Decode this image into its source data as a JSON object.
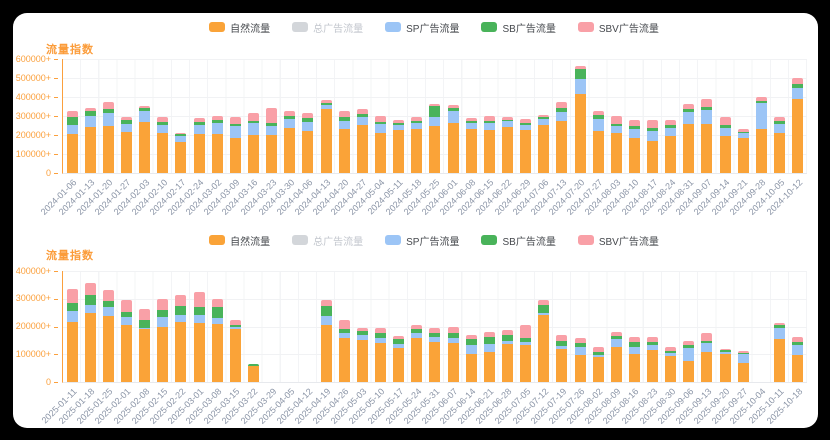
{
  "page": {
    "background": "#000000",
    "card_background": "#ffffff"
  },
  "colors": {
    "natural": "#faa338",
    "total_ad_inactive": "#d3d6da",
    "sp": "#9cc5f6",
    "sb": "#49b35a",
    "sbv": "#f9a0a7",
    "title_text": "#fb9c3a",
    "y_axis_text": "#fba03d",
    "x_axis_text": "#8a94a6",
    "grid_line": "#f1f2f4"
  },
  "chart_data": [
    {
      "type": "bar",
      "stacked": true,
      "title": "流量指数",
      "legend_position": "top-center",
      "grid": true,
      "legend": [
        {
          "label": "自然流量",
          "color": "#faa338",
          "active": true
        },
        {
          "label": "总广告流量",
          "color": "#d3d6da",
          "active": false
        },
        {
          "label": "SP广告流量",
          "color": "#9cc5f6",
          "active": true
        },
        {
          "label": "SB广告流量",
          "color": "#49b35a",
          "active": true
        },
        {
          "label": "SBV广告流量",
          "color": "#f9a0a7",
          "active": true
        }
      ],
      "y_axis": {
        "max": 600000,
        "tick_labels": [
          "600000+",
          "500000+",
          "400000+",
          "300000+",
          "200000+",
          "100000+",
          "0"
        ]
      },
      "categories": [
        "2024-01-06",
        "2024-01-13",
        "2024-01-20",
        "2024-01-27",
        "2024-02-03",
        "2024-02-10",
        "2024-02-17",
        "2024-02-24",
        "2024-03-02",
        "2024-03-09",
        "2024-03-16",
        "2024-03-23",
        "2024-03-30",
        "2024-04-06",
        "2024-04-13",
        "2024-04-20",
        "2024-04-27",
        "2024-05-04",
        "2024-05-11",
        "2024-05-18",
        "2024-05-25",
        "2024-06-01",
        "2024-06-08",
        "2024-06-15",
        "2024-06-22",
        "2024-06-29",
        "2024-07-06",
        "2024-07-13",
        "2024-07-20",
        "2024-07-27",
        "2024-08-03",
        "2024-08-10",
        "2024-08-17",
        "2024-08-24",
        "2024-08-31",
        "2024-09-07",
        "2024-09-14",
        "2024-09-21",
        "2024-09-28",
        "2024-10-05",
        "2024-10-12"
      ],
      "series": [
        {
          "name": "自然流量",
          "key": "natural",
          "color": "#faa338",
          "values": [
            205000,
            240000,
            248000,
            218000,
            270000,
            210000,
            165000,
            204000,
            205000,
            185000,
            200000,
            198000,
            238000,
            223000,
            335000,
            230000,
            253000,
            212000,
            228000,
            230000,
            247000,
            265000,
            230000,
            225000,
            240000,
            225000,
            253000,
            274000,
            415000,
            223000,
            209000,
            183000,
            168000,
            195000,
            258000,
            256000,
            196000,
            182000,
            233000,
            211000,
            392000
          ]
        },
        {
          "name": "SP广告流量",
          "key": "sp",
          "color": "#9cc5f6",
          "values": [
            50000,
            62000,
            68000,
            40000,
            58000,
            42000,
            30000,
            49000,
            58000,
            60000,
            62000,
            47000,
            45000,
            47000,
            22000,
            45000,
            43000,
            45000,
            27000,
            32000,
            50000,
            62000,
            32000,
            37000,
            32000,
            28000,
            30000,
            45000,
            78000,
            61000,
            38000,
            49000,
            53000,
            43000,
            65000,
            75000,
            42000,
            26000,
            133000,
            47000,
            53000
          ]
        },
        {
          "name": "SB广告流量",
          "key": "sb",
          "color": "#49b35a",
          "values": [
            42000,
            26000,
            22000,
            20000,
            12000,
            18000,
            8000,
            17000,
            15000,
            15000,
            10000,
            17000,
            17000,
            18000,
            12000,
            18000,
            15000,
            13000,
            10000,
            12000,
            58000,
            15000,
            10000,
            10000,
            8000,
            9000,
            10000,
            21000,
            57000,
            21000,
            12000,
            14000,
            14000,
            15000,
            14000,
            14000,
            15000,
            10000,
            14000,
            17000,
            22000
          ]
        },
        {
          "name": "SBV广告流量",
          "key": "sbv",
          "color": "#f9a0a7",
          "values": [
            28000,
            13000,
            34000,
            18000,
            15000,
            26000,
            10000,
            21000,
            23000,
            35000,
            43000,
            81000,
            28000,
            29000,
            13000,
            35000,
            24000,
            28000,
            15000,
            22000,
            7000,
            16000,
            18000,
            30000,
            17000,
            21000,
            15000,
            35000,
            13000,
            23000,
            43000,
            31000,
            42000,
            24000,
            24000,
            43000,
            43000,
            13000,
            18000,
            21000,
            31000
          ]
        }
      ]
    },
    {
      "type": "bar",
      "stacked": true,
      "title": "流量指数",
      "legend_position": "top-center",
      "grid": true,
      "legend": [
        {
          "label": "自然流量",
          "color": "#faa338",
          "active": true
        },
        {
          "label": "总广告流量",
          "color": "#d3d6da",
          "active": false
        },
        {
          "label": "SP广告流量",
          "color": "#9cc5f6",
          "active": true
        },
        {
          "label": "SB广告流量",
          "color": "#49b35a",
          "active": true
        },
        {
          "label": "SBV广告流量",
          "color": "#f9a0a7",
          "active": true
        }
      ],
      "y_axis": {
        "max": 400000,
        "tick_labels": [
          "400000+",
          "300000+",
          "200000+",
          "100000+",
          "0"
        ]
      },
      "categories": [
        "2025-01-11",
        "2025-01-18",
        "2025-01-25",
        "2025-02-01",
        "2025-02-08",
        "2025-02-15",
        "2025-02-22",
        "2025-03-01",
        "2025-03-08",
        "2025-03-15",
        "2025-03-22",
        "2025-03-29",
        "2025-04-05",
        "2025-04-12",
        "2025-04-19",
        "2025-04-26",
        "2025-05-03",
        "2025-05-10",
        "2025-05-17",
        "2025-05-24",
        "2025-05-31",
        "2025-06-07",
        "2025-06-14",
        "2025-06-21",
        "2025-06-28",
        "2025-07-05",
        "2025-07-12",
        "2025-07-19",
        "2025-07-26",
        "2025-08-02",
        "2025-08-09",
        "2025-08-16",
        "2025-08-23",
        "2025-08-30",
        "2025-09-06",
        "2025-09-13",
        "2025-09-20",
        "2025-09-27",
        "2025-10-04",
        "2025-10-11",
        "2025-10-18"
      ],
      "series": [
        {
          "name": "自然流量",
          "key": "natural",
          "color": "#faa338",
          "values": [
            215000,
            248000,
            237000,
            204000,
            190000,
            198000,
            216000,
            214000,
            210000,
            190000,
            58000,
            0,
            0,
            0,
            204000,
            160000,
            151000,
            140000,
            122000,
            160000,
            146000,
            140000,
            101000,
            108000,
            136000,
            132000,
            242000,
            120000,
            96000,
            89000,
            125000,
            101000,
            116000,
            93000,
            75000,
            108000,
            101000,
            69000,
            0,
            155000,
            96000
          ]
        },
        {
          "name": "SP广告流量",
          "key": "sp",
          "color": "#9cc5f6",
          "values": [
            40000,
            30000,
            32000,
            29000,
            5000,
            36000,
            26000,
            28000,
            20000,
            8000,
            0,
            0,
            0,
            0,
            35000,
            15000,
            18000,
            20000,
            14000,
            18000,
            17000,
            20000,
            33000,
            28000,
            12000,
            11000,
            8000,
            8000,
            29000,
            7000,
            30000,
            27000,
            16000,
            12000,
            47000,
            32000,
            9000,
            32000,
            0,
            40000,
            36000
          ]
        },
        {
          "name": "SB广告流量",
          "key": "sb",
          "color": "#49b35a",
          "values": [
            30000,
            36000,
            23000,
            20000,
            30000,
            26000,
            32000,
            30000,
            42000,
            6000,
            6000,
            0,
            0,
            0,
            35000,
            15000,
            14000,
            15000,
            19000,
            14000,
            12000,
            18000,
            21000,
            27000,
            23000,
            17000,
            28000,
            20000,
            15000,
            12000,
            12000,
            15000,
            11000,
            8000,
            12000,
            8000,
            4000,
            4000,
            0,
            12000,
            11000
          ]
        },
        {
          "name": "SBV广告流量",
          "key": "sbv",
          "color": "#f9a0a7",
          "values": [
            52000,
            42000,
            41000,
            41000,
            38000,
            38000,
            41000,
            52000,
            26000,
            18000,
            0,
            0,
            0,
            0,
            22000,
            32000,
            12000,
            20000,
            12000,
            15000,
            18000,
            20000,
            14000,
            18000,
            16000,
            47000,
            18000,
            21000,
            20000,
            17000,
            12000,
            20000,
            20000,
            15000,
            14000,
            30000,
            6000,
            8000,
            0,
            7000,
            20000
          ]
        }
      ]
    }
  ]
}
